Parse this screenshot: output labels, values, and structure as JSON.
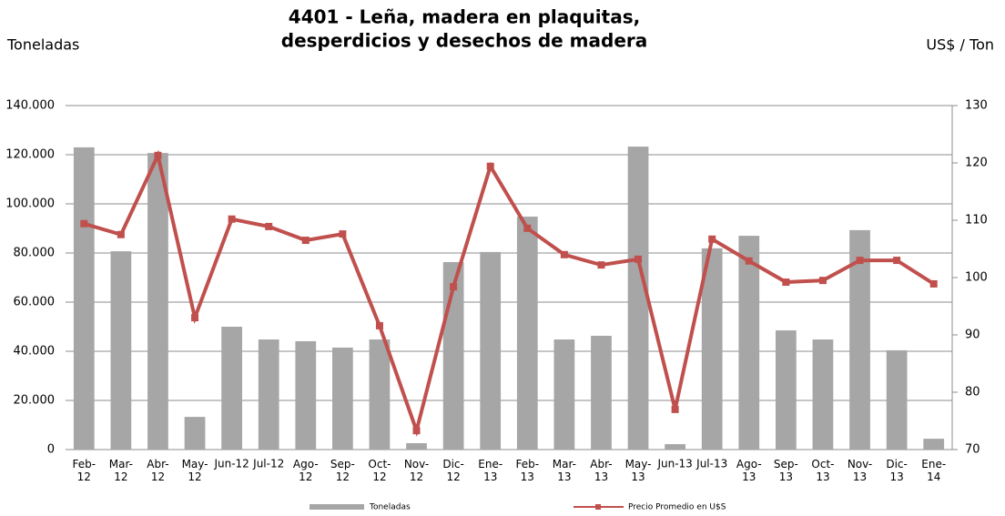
{
  "chart_data": {
    "type": "bar-line",
    "title": [
      "4401 - Leña, madera en plaquitas,",
      "desperdicios y desechos de madera"
    ],
    "y_label": "Toneladas",
    "y2_label": "US$ / Ton",
    "categories": [
      "Feb-12",
      "Mar-12",
      "Abr-12",
      "May-12",
      "Jun-12",
      "Jul-12",
      "Ago-12",
      "Sep-12",
      "Oct-12",
      "Nov-12",
      "Dic-12",
      "Ene-13",
      "Feb-13",
      "Mar-13",
      "Abr-13",
      "May-13",
      "Jun-13",
      "Jul-13",
      "Ago-13",
      "Sep-13",
      "Oct-13",
      "Nov-13",
      "Dic-13",
      "Ene-14"
    ],
    "series": [
      {
        "name": "Toneladas",
        "type": "bar",
        "color": "#a6a6a6",
        "values": [
          123000,
          80700,
          120700,
          13300,
          50000,
          44800,
          44100,
          41500,
          44800,
          2600,
          76300,
          80400,
          94800,
          44800,
          46300,
          123300,
          2200,
          81900,
          87000,
          48500,
          44800,
          89300,
          40400,
          4400
        ]
      },
      {
        "name": "Precio Promedio en  U$S",
        "type": "line",
        "axis": "y2",
        "color": "#c0504d",
        "values": [
          109.4,
          107.5,
          121.3,
          93,
          110.2,
          108.9,
          106.5,
          107.6,
          91.6,
          73.3,
          98.4,
          119.4,
          108.6,
          104,
          102.2,
          103.2,
          77,
          106.7,
          102.9,
          99.2,
          99.5,
          103,
          103,
          98.9
        ]
      }
    ],
    "ylim": [
      0,
      140000
    ],
    "yticks": [
      0,
      {
        "value": 20000,
        "label": "20.000"
      },
      {
        "value": 40000,
        "label": "40.000"
      },
      {
        "value": 60000,
        "label": "60.000"
      },
      {
        "value": 80000,
        "label": "80.000"
      },
      {
        "value": 100000,
        "label": "100.000"
      },
      {
        "value": 120000,
        "label": "120.000"
      },
      {
        "value": 140000,
        "label": "140.000"
      }
    ],
    "y2lim": [
      70,
      130
    ],
    "y2ticks": [
      70,
      80,
      90,
      100,
      110,
      120,
      130
    ],
    "grid": true
  }
}
